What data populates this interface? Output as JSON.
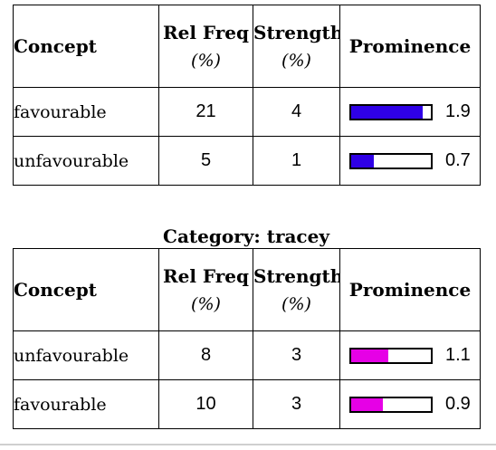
{
  "headers": {
    "concept": "Concept",
    "rel_freq": "Rel Freq",
    "rel_freq_unit": "(%)",
    "strength": "Strength",
    "strength_unit": "(%)",
    "prominence": "Prominence"
  },
  "tables": [
    {
      "caption": "",
      "bar_color": "#2f00e6",
      "rows": [
        {
          "concept": "favourable",
          "rel_freq": "21",
          "strength": "4",
          "prominence": "1.9",
          "bar_fraction": 0.9
        },
        {
          "concept": "unfavourable",
          "rel_freq": "5",
          "strength": "1",
          "prominence": "0.7",
          "bar_fraction": 0.28
        }
      ]
    },
    {
      "caption": "Category: tracey",
      "bar_color": "#e600e6",
      "rows": [
        {
          "concept": "unfavourable",
          "rel_freq": "8",
          "strength": "3",
          "prominence": "1.1",
          "bar_fraction": 0.47
        },
        {
          "concept": "favourable",
          "rel_freq": "10",
          "strength": "3",
          "prominence": "0.9",
          "bar_fraction": 0.4
        }
      ]
    }
  ]
}
